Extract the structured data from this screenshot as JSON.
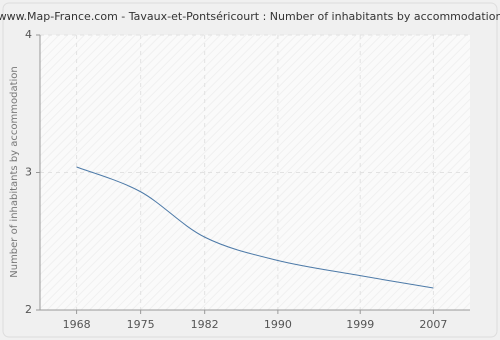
{
  "chart_data": {
    "type": "line",
    "title": "www.Map-France.com - Tavaux-et-Pontséricourt : Number of inhabitants by accommodation",
    "y_label": "Number of inhabitants by accommodation",
    "x": [
      1968,
      1975,
      1982,
      1990,
      1999,
      2007
    ],
    "series": [
      {
        "name": "Number of inhabitants by accommodation",
        "color": "#4d7aa8",
        "values": [
          3.04,
          2.86,
          2.53,
          2.36,
          2.25,
          2.16
        ]
      }
    ],
    "xlim": [
      1964,
      2011
    ],
    "xticks": [
      1968,
      1975,
      1982,
      1990,
      1999,
      2007
    ],
    "ylim": [
      2,
      4
    ],
    "yticks": [
      2,
      3,
      4
    ],
    "grid": true
  }
}
